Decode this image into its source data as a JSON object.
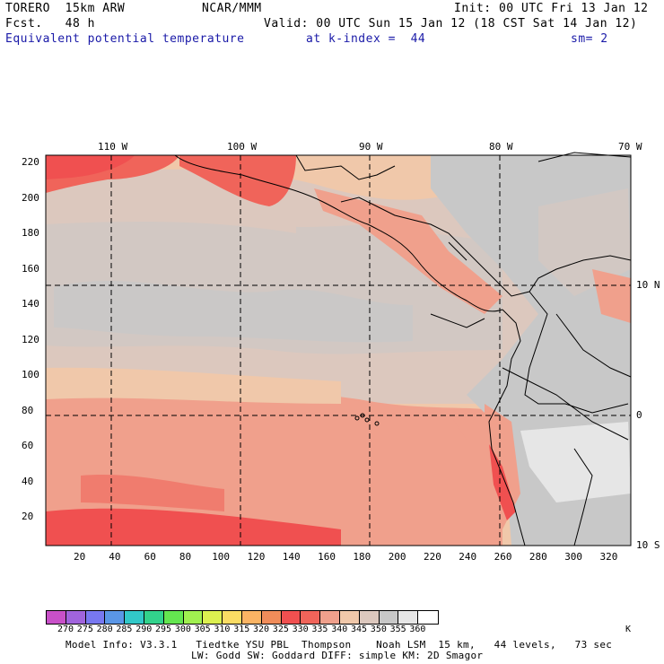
{
  "header": {
    "model": "TORERO  15km ARW",
    "center": "NCAR/MMM",
    "init": "Init: 00 UTC Fri 13 Jan 12",
    "fcst": "Fcst.   48 h",
    "valid": "Valid: 00 UTC Sun 15 Jan 12 (18 CST Sat 14 Jan 12)",
    "field": "Equivalent potential temperature",
    "level": "at k-index =  44",
    "smooth": "sm= 2"
  },
  "map": {
    "lon_labels": [
      "110 W",
      "100 W",
      "90 W",
      "80 W",
      "70 W"
    ],
    "lat_labels": [
      "10 N",
      "0",
      "10 S"
    ],
    "y_ticks": [
      "220",
      "200",
      "180",
      "160",
      "140",
      "120",
      "100",
      "80",
      "60",
      "40",
      "20"
    ],
    "x_ticks": [
      "20",
      "40",
      "60",
      "80",
      "100",
      "120",
      "140",
      "160",
      "180",
      "200",
      "220",
      "240",
      "260",
      "280",
      "300",
      "320"
    ]
  },
  "colorbar": {
    "unit": "K",
    "labels": [
      "270",
      "275",
      "280",
      "285",
      "290",
      "295",
      "300",
      "305",
      "310",
      "315",
      "320",
      "325",
      "330",
      "335",
      "340",
      "345",
      "350",
      "355",
      "360"
    ],
    "colors": [
      "#c850c8",
      "#a064dc",
      "#7878f0",
      "#5a96e6",
      "#32c8c8",
      "#32d28c",
      "#64e650",
      "#a0f050",
      "#dcf050",
      "#fadc64",
      "#fab464",
      "#f08c5a",
      "#f05050",
      "#f0645a",
      "#f0a08c",
      "#f0c8aa",
      "#dcc8be",
      "#c8c8c8",
      "#e6e6e6",
      "#ffffff"
    ]
  },
  "footer": {
    "line1": "Model Info: V3.3.1   Tiedtke YSU PBL  Thompson    Noah LSM  15 km,   44 levels,   73 sec",
    "line2": "LW: Godd SW: Goddard DIFF: simple KM: 2D Smagor"
  }
}
